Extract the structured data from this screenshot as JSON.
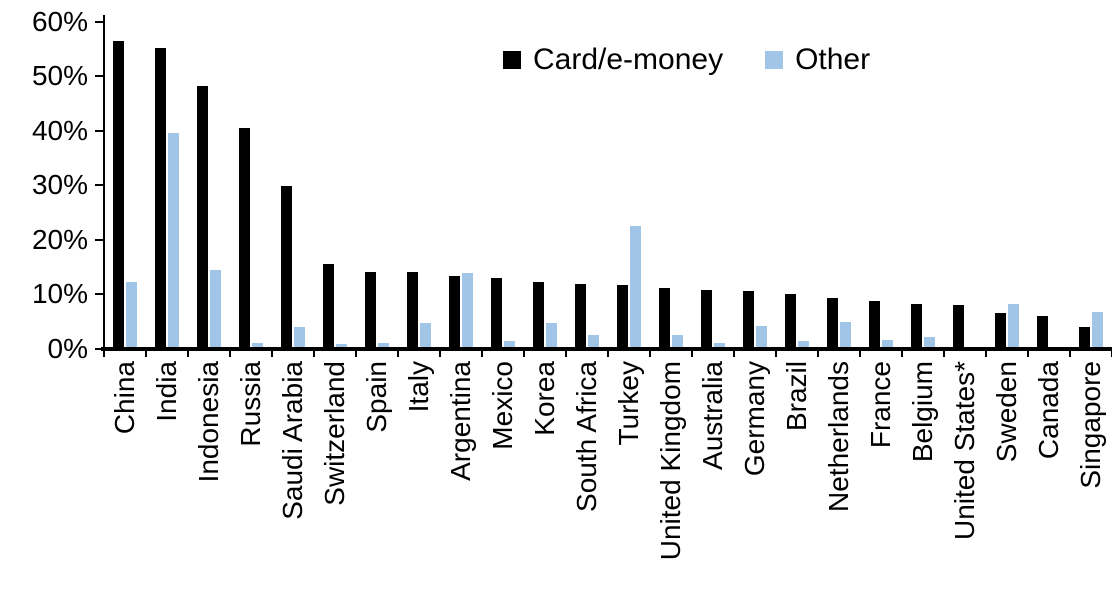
{
  "chart_data": {
    "type": "bar",
    "title": "",
    "xlabel": "",
    "ylabel": "",
    "categories": [
      "China",
      "India",
      "Indonesia",
      "Russia",
      "Saudi Arabia",
      "Switzerland",
      "Spain",
      "Italy",
      "Argentina",
      "Mexico",
      "Korea",
      "South Africa",
      "Turkey",
      "United Kingdom",
      "Australia",
      "Germany",
      "Brazil",
      "Netherlands",
      "France",
      "Belgium",
      "United States*",
      "Sweden",
      "Canada",
      "Singapore"
    ],
    "series": [
      {
        "name": "Card/e-money",
        "color": "#000000",
        "values": [
          56.4,
          55.1,
          48.2,
          40.4,
          29.9,
          15.6,
          14.1,
          14.1,
          13.4,
          12.9,
          12.3,
          11.8,
          11.6,
          11.1,
          10.8,
          10.6,
          10.0,
          9.3,
          8.8,
          8.2,
          7.9,
          6.6,
          6.0,
          3.9
        ]
      },
      {
        "name": "Other",
        "color": "#A0C5E6",
        "values": [
          12.3,
          39.6,
          14.5,
          1.0,
          3.9,
          0.8,
          1.0,
          4.6,
          13.9,
          1.3,
          4.6,
          2.5,
          22.5,
          2.4,
          1.1,
          4.1,
          1.3,
          4.9,
          1.6,
          2.1,
          0.3,
          8.2,
          0,
          6.7
        ]
      }
    ],
    "ylim": [
      0,
      60
    ],
    "yticks": [
      "0%",
      "10%",
      "20%",
      "30%",
      "40%",
      "50%",
      "60%"
    ],
    "ytick_unit": "percent",
    "grid": false,
    "legend_position": "top-center",
    "x_labels_rotation": "vertical-bottom-to-top"
  }
}
